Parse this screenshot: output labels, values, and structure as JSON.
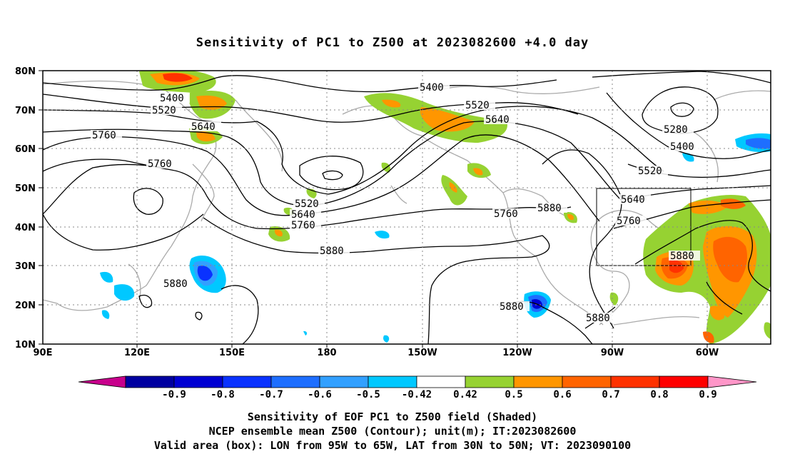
{
  "title": "Sensitivity of PC1 to Z500 at 2023082600 +4.0 day",
  "map": {
    "lon_labels": [
      "90E",
      "120E",
      "150E",
      "180",
      "150W",
      "120W",
      "90W",
      "60W"
    ],
    "lat_labels": [
      "80N",
      "70N",
      "60N",
      "50N",
      "40N",
      "30N",
      "20N",
      "10N"
    ],
    "contour_labels": [
      "5400",
      "5520",
      "5640",
      "5760",
      "5760",
      "5520",
      "5640",
      "5760",
      "5880",
      "5880",
      "5400",
      "5520",
      "5640",
      "5760",
      "5880",
      "5280",
      "5400",
      "5520",
      "5640",
      "5760",
      "5880",
      "5880",
      "5880"
    ],
    "valid_box": {
      "lon_from": "95W",
      "lon_to": "65W",
      "lat_from": "30N",
      "lat_to": "50N"
    },
    "colors": {
      "coast": "#aaaaaa",
      "contour": "#000000",
      "grid": "#888888"
    }
  },
  "colorbar": {
    "labels": [
      "-0.9",
      "-0.8",
      "-0.7",
      "-0.6",
      "-0.5",
      "-0.42",
      "0.42",
      "0.5",
      "0.6",
      "0.7",
      "0.8",
      "0.9"
    ],
    "colors": [
      "#c8008c",
      "#0000a0",
      "#0000d2",
      "#0a32ff",
      "#1e6eff",
      "#32a0ff",
      "#00c8ff",
      "#ffffff",
      "#96d232",
      "#ff9600",
      "#ff6400",
      "#ff3200",
      "#ff0000",
      "#ff96c8"
    ]
  },
  "caption": {
    "line1": "Sensitivity of EOF PC1 to Z500 field (Shaded)",
    "line2": "NCEP ensemble mean Z500 (Contour); unit(m); IT:2023082600",
    "line3": "Valid area (box): LON from 95W to 65W, LAT from 30N to 50N; VT: 2023090100"
  }
}
